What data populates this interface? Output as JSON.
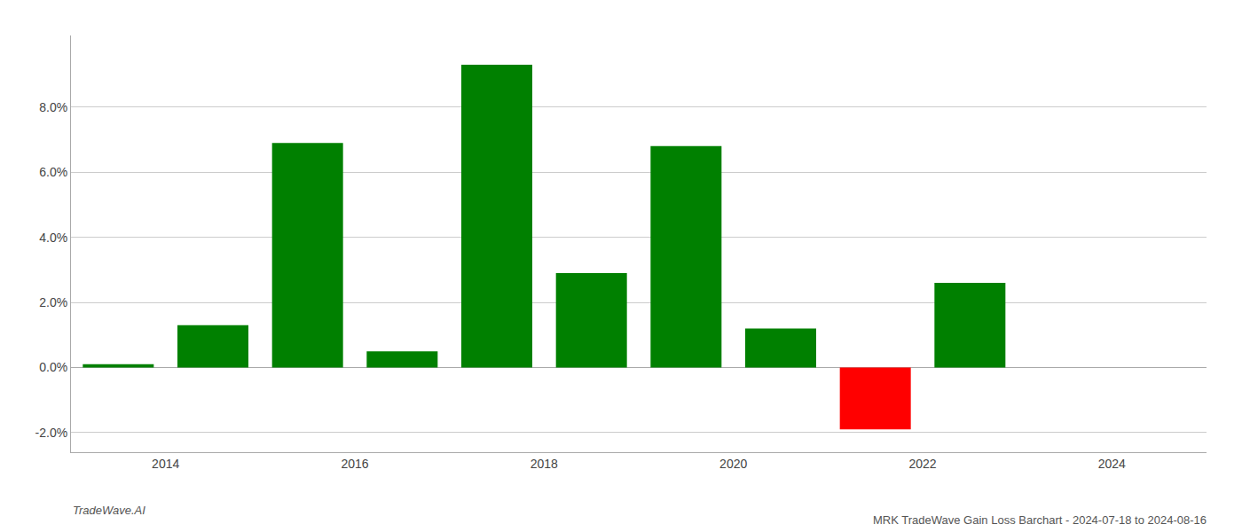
{
  "chart_data": {
    "type": "bar",
    "title": "MRK TradeWave Gain Loss Barchart - 2024-07-18 to 2024-08-16",
    "annotations": [
      "TradeWave.AI"
    ],
    "x": [
      2013.5,
      2014.5,
      2015.5,
      2016.5,
      2017.5,
      2018.5,
      2019.5,
      2020.5,
      2021.5,
      2022.5
    ],
    "values": [
      0.001,
      0.013,
      0.069,
      0.005,
      0.093,
      0.029,
      0.068,
      0.012,
      -0.019,
      0.026
    ],
    "colors": [
      "#008000",
      "#008000",
      "#008000",
      "#008000",
      "#008000",
      "#008000",
      "#008000",
      "#008000",
      "#ff0000",
      "#008000"
    ],
    "xlim": [
      2013,
      2025
    ],
    "xticks": [
      2014,
      2016,
      2018,
      2020,
      2022,
      2024
    ],
    "ylim": [
      -0.026,
      0.102
    ],
    "yticks": [
      {
        "value": -0.02,
        "label": "-2.0%"
      },
      {
        "value": 0.0,
        "label": "0.0%"
      },
      {
        "value": 0.02,
        "label": "2.0%"
      },
      {
        "value": 0.04,
        "label": "4.0%"
      },
      {
        "value": 0.06,
        "label": "6.0%"
      },
      {
        "value": 0.08,
        "label": "8.0%"
      }
    ],
    "grid": "y"
  }
}
